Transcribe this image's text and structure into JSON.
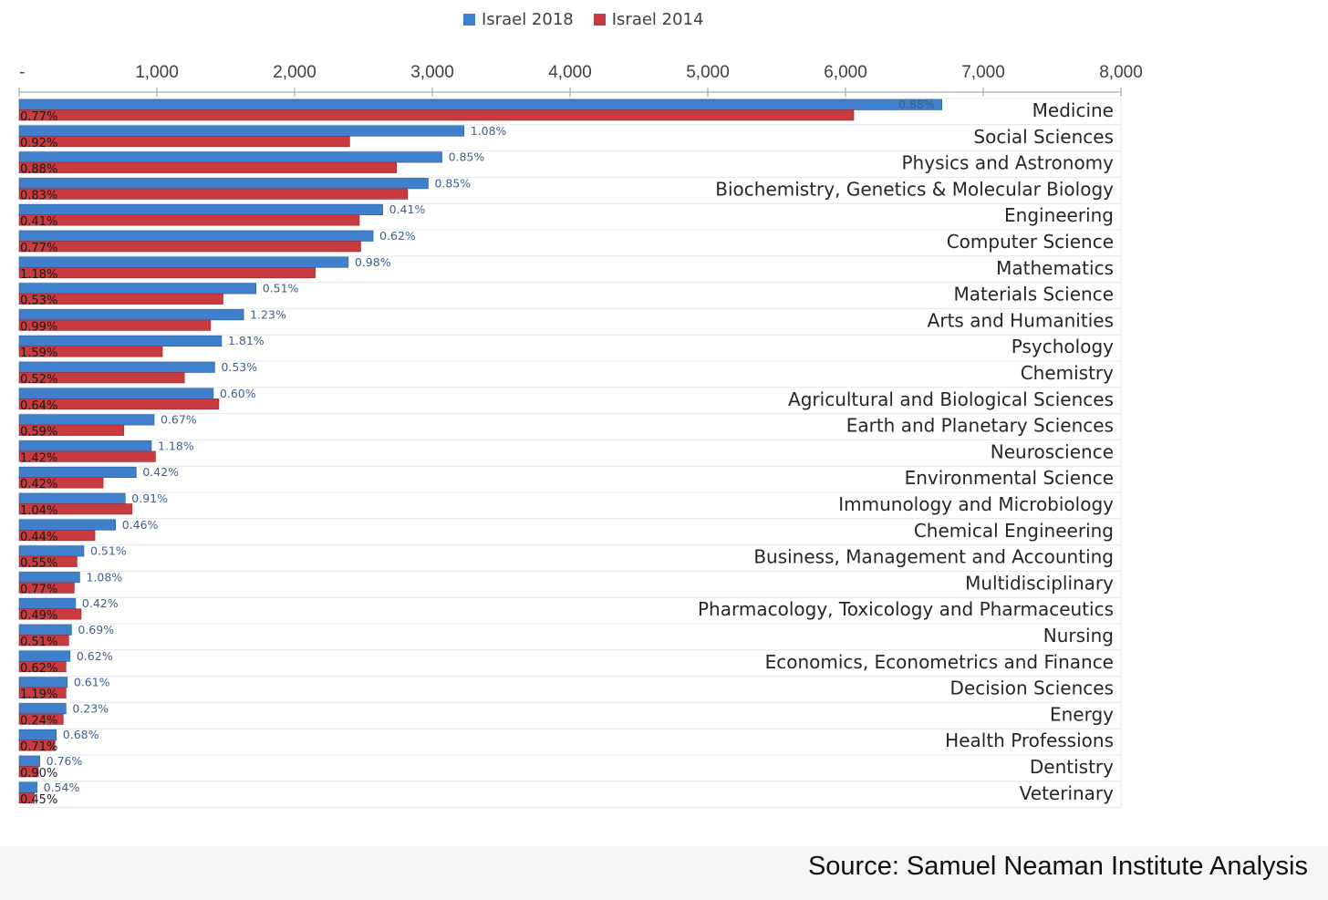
{
  "chart_data": {
    "type": "bar",
    "orientation": "horizontal",
    "title": "",
    "xlabel": "",
    "ylabel": "",
    "xlim": [
      0,
      8000
    ],
    "x_ticks": [
      {
        "value": 0,
        "label": "-"
      },
      {
        "value": 1000,
        "label": "1,000"
      },
      {
        "value": 2000,
        "label": "2,000"
      },
      {
        "value": 3000,
        "label": "3,000"
      },
      {
        "value": 4000,
        "label": "4,000"
      },
      {
        "value": 5000,
        "label": "5,000"
      },
      {
        "value": 6000,
        "label": "6,000"
      },
      {
        "value": 7000,
        "label": "7,000"
      },
      {
        "value": 8000,
        "label": "8,000"
      }
    ],
    "legend": {
      "position": "top-center",
      "entries": [
        "Israel 2018",
        "Israel 2014"
      ]
    },
    "colors": {
      "s2018": "#3f7fcb",
      "s2014": "#c93b3f",
      "grid": "#e6e6e6",
      "axis": "#9a9a9a"
    },
    "categories": [
      "Medicine",
      "Social Sciences",
      "Physics and Astronomy",
      "Biochemistry, Genetics & Molecular Biology",
      "Engineering",
      "Computer Science",
      "Mathematics",
      "Materials Science",
      "Arts and Humanities",
      "Psychology",
      "Chemistry",
      "Agricultural and Biological Sciences",
      "Earth and Planetary Sciences",
      "Neuroscience",
      "Environmental Science",
      "Immunology and Microbiology",
      "Chemical Engineering",
      "Business, Management and Accounting",
      "Multidisciplinary",
      "Pharmacology, Toxicology and Pharmaceutics",
      "Nursing",
      "Economics, Econometrics and Finance",
      "Decision Sciences",
      "Energy",
      "Health Professions",
      "Dentistry",
      "Veterinary"
    ],
    "series": [
      {
        "name": "Israel 2018",
        "values": [
          6700,
          3230,
          3070,
          2970,
          2640,
          2570,
          2390,
          1720,
          1630,
          1470,
          1420,
          1410,
          980,
          960,
          850,
          770,
          700,
          470,
          440,
          410,
          380,
          370,
          350,
          340,
          270,
          150,
          130
        ],
        "labels": [
          "0.88%",
          "1.08%",
          "0.85%",
          "0.85%",
          "0.41%",
          "0.62%",
          "0.98%",
          "0.51%",
          "1.23%",
          "1.81%",
          "0.53%",
          "0.60%",
          "0.67%",
          "1.18%",
          "0.42%",
          "0.91%",
          "0.46%",
          "0.51%",
          "1.08%",
          "0.42%",
          "0.69%",
          "0.62%",
          "0.61%",
          "0.23%",
          "0.68%",
          "0.76%",
          "0.54%"
        ]
      },
      {
        "name": "Israel 2014",
        "values": [
          6060,
          2400,
          2740,
          2820,
          2470,
          2480,
          2150,
          1480,
          1390,
          1040,
          1200,
          1450,
          760,
          990,
          610,
          820,
          550,
          420,
          400,
          450,
          360,
          340,
          340,
          320,
          260,
          140,
          110
        ],
        "labels": [
          "0.77%",
          "0.92%",
          "0.88%",
          "0.83%",
          "0.41%",
          "0.77%",
          "1.18%",
          "0.53%",
          "0.99%",
          "1.59%",
          "0.52%",
          "0.64%",
          "0.59%",
          "1.42%",
          "0.42%",
          "1.04%",
          "0.44%",
          "0.55%",
          "0.77%",
          "0.49%",
          "0.51%",
          "0.62%",
          "1.19%",
          "0.24%",
          "0.71%",
          "0.90%",
          "0.45%"
        ]
      }
    ]
  },
  "source": "Source: Samuel Neaman Institute Analysis"
}
